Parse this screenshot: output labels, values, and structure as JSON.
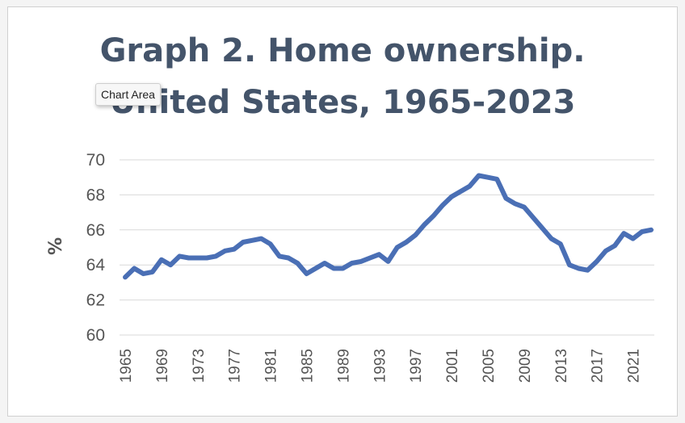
{
  "chart_data": {
    "type": "line",
    "title": "Graph 2. Home ownership. United States, 1965-2023",
    "title_lines": [
      "Graph 2. Home ownership.",
      "United States, 1965-2023"
    ],
    "ylabel": "%",
    "xlabel": "",
    "ylim": [
      60,
      70
    ],
    "yticks": [
      60,
      62,
      64,
      66,
      68,
      70
    ],
    "xticks": [
      "1965",
      "1969",
      "1973",
      "1977",
      "1981",
      "1985",
      "1989",
      "1993",
      "1997",
      "2001",
      "2005",
      "2009",
      "2013",
      "2017",
      "2021"
    ],
    "grid": true,
    "legend": "none",
    "line_color": "#4a6fb5",
    "x": [
      1965,
      1966,
      1967,
      1968,
      1969,
      1970,
      1971,
      1972,
      1973,
      1974,
      1975,
      1976,
      1977,
      1978,
      1979,
      1980,
      1981,
      1982,
      1983,
      1984,
      1985,
      1986,
      1987,
      1988,
      1989,
      1990,
      1991,
      1992,
      1993,
      1994,
      1995,
      1996,
      1997,
      1998,
      1999,
      2000,
      2001,
      2002,
      2003,
      2004,
      2005,
      2006,
      2007,
      2008,
      2009,
      2010,
      2011,
      2012,
      2013,
      2014,
      2015,
      2016,
      2017,
      2018,
      2019,
      2020,
      2021,
      2022,
      2023
    ],
    "series": [
      {
        "values": [
          63.3,
          63.8,
          63.5,
          63.6,
          64.3,
          64.0,
          64.5,
          64.4,
          64.4,
          64.4,
          64.5,
          64.8,
          64.9,
          65.3,
          65.4,
          65.5,
          65.2,
          64.5,
          64.4,
          64.1,
          63.5,
          63.8,
          64.1,
          63.8,
          63.8,
          64.1,
          64.2,
          64.4,
          64.6,
          64.2,
          65.0,
          65.3,
          65.7,
          66.3,
          66.8,
          67.4,
          67.9,
          68.2,
          68.5,
          69.1,
          69.0,
          68.9,
          67.8,
          67.5,
          67.3,
          66.7,
          66.1,
          65.5,
          65.2,
          64.0,
          63.8,
          63.7,
          64.2,
          64.8,
          65.1,
          65.8,
          65.5,
          65.9,
          66.0
        ]
      }
    ]
  },
  "tooltip": "Chart Area"
}
